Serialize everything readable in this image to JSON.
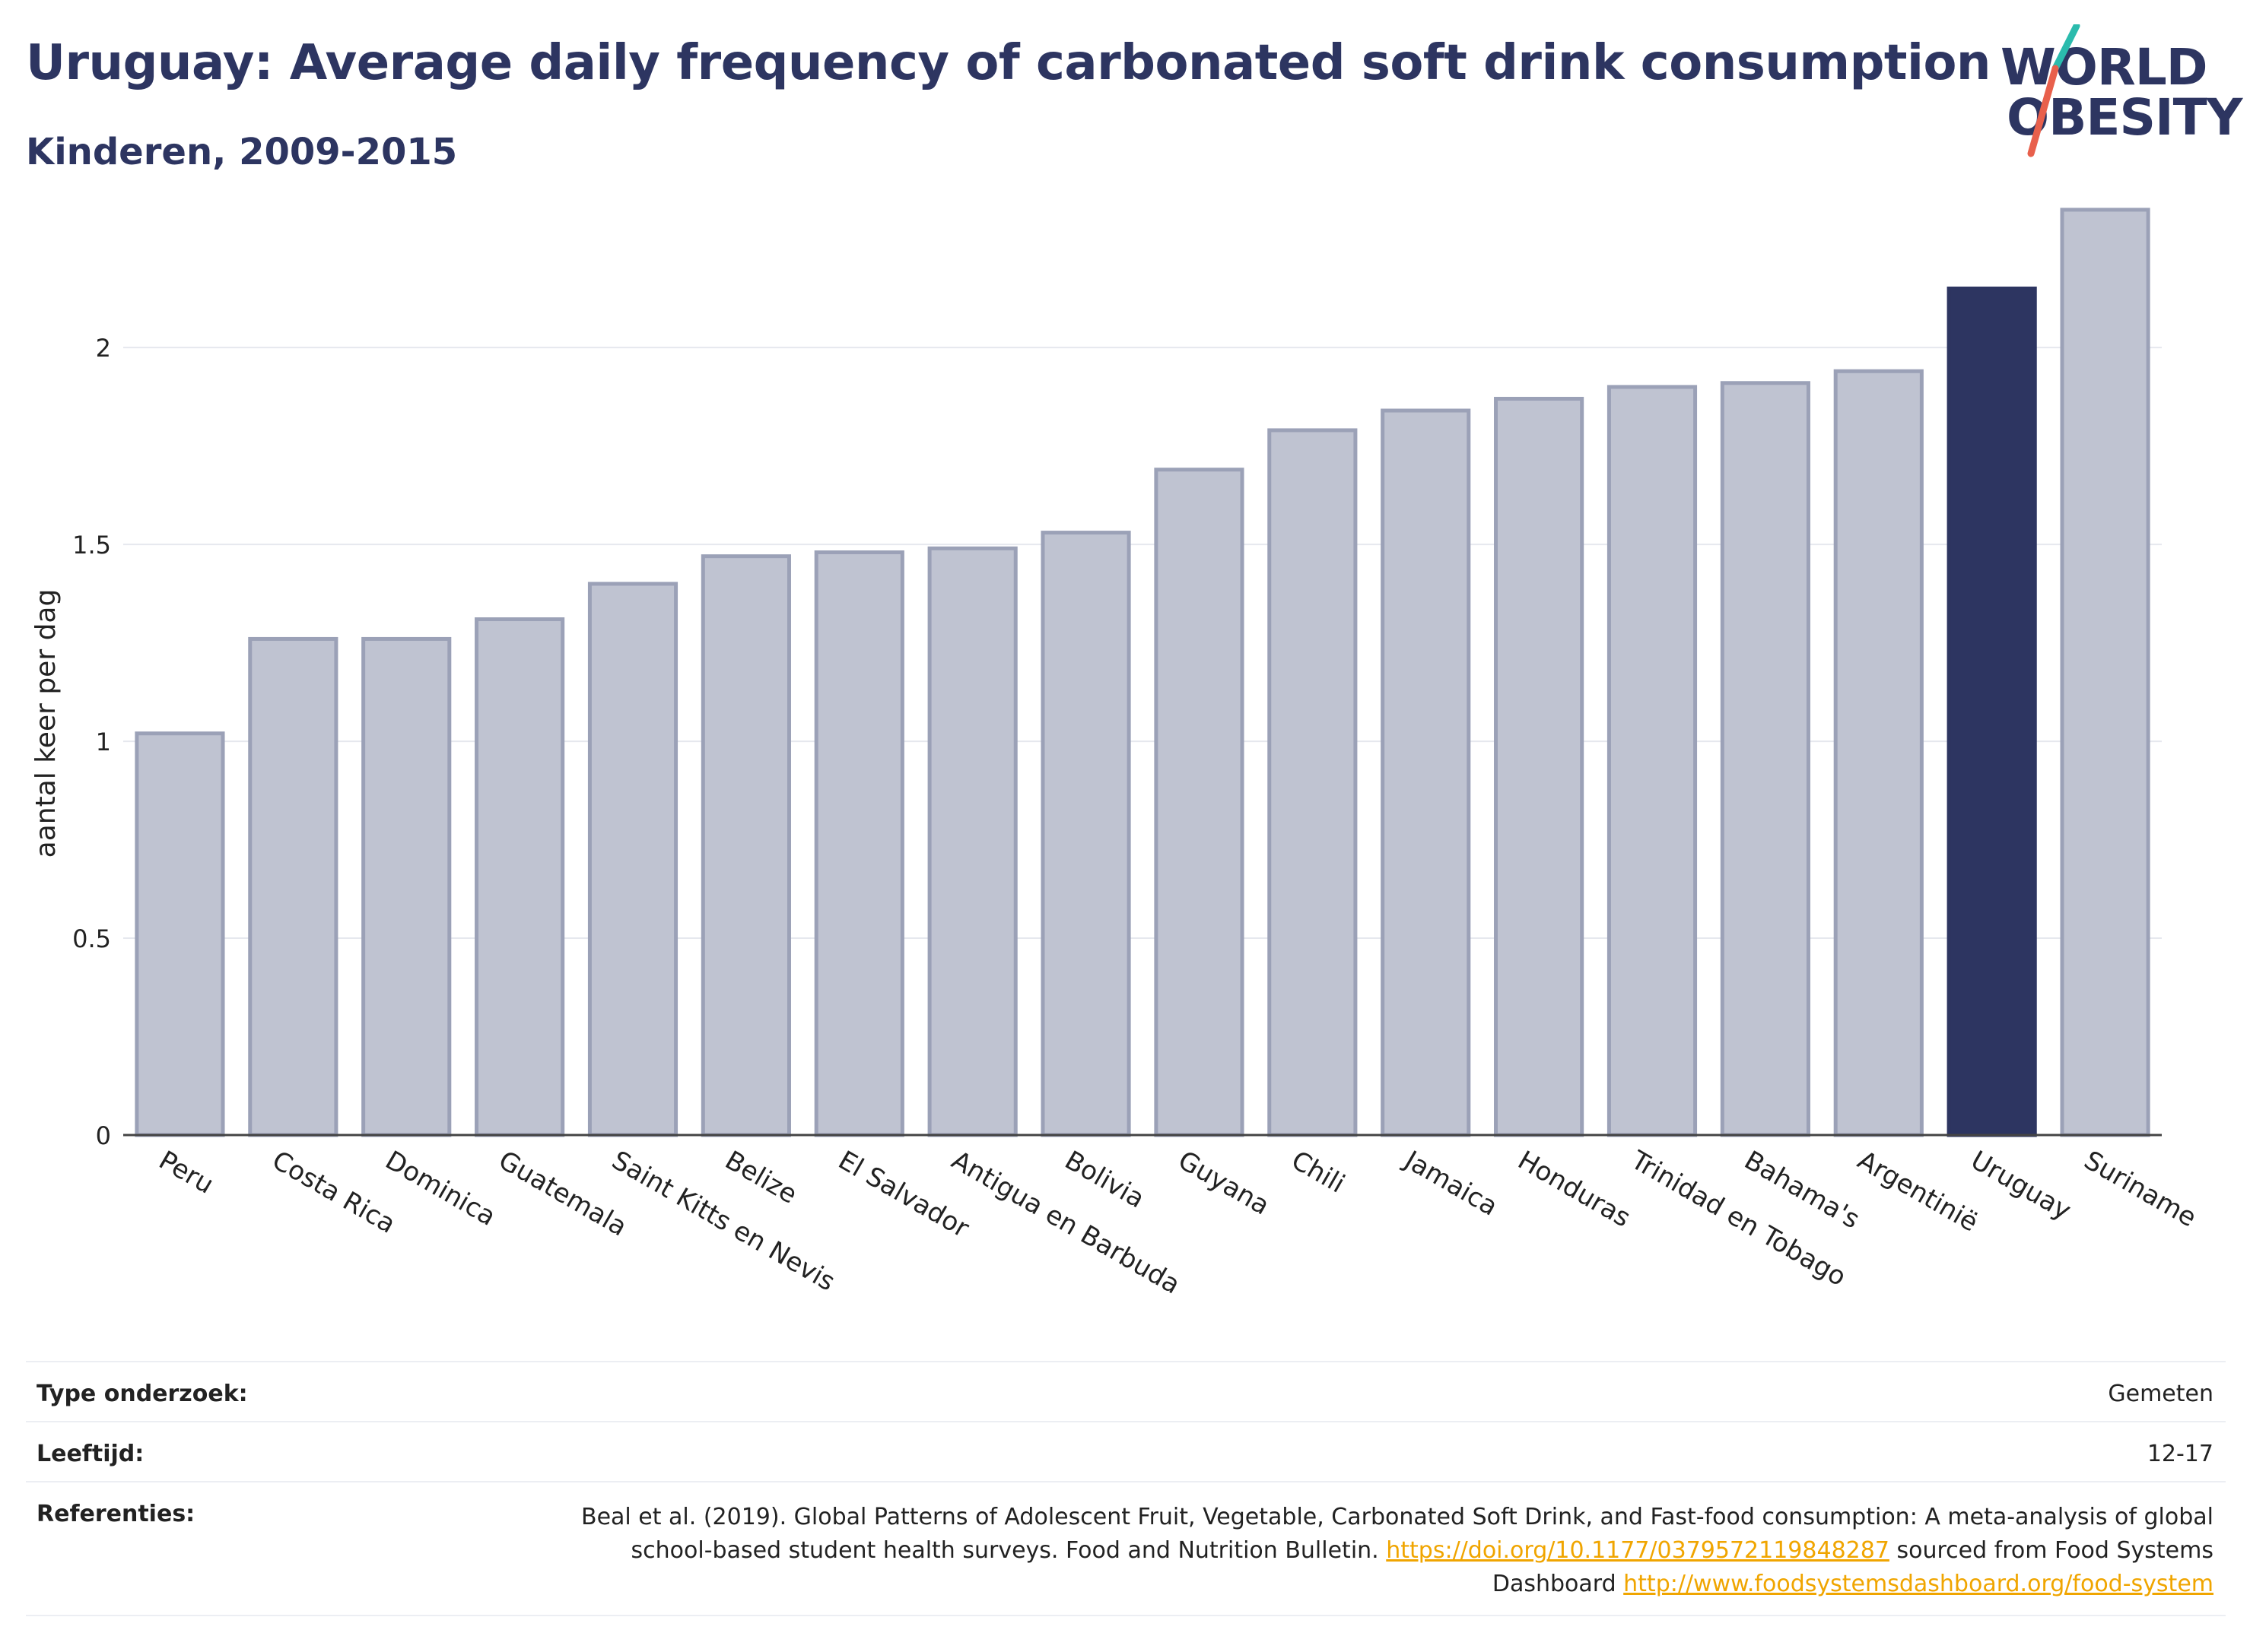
{
  "header": {
    "title": "Uruguay: Average daily frequency of carbonated soft drink consumption",
    "subtitle": "Kinderen, 2009-2015"
  },
  "logo": {
    "line1": "WORLD",
    "line2": "OBESITY",
    "colors": {
      "text": "#2d3561",
      "slash_top": "#2bbbad",
      "slash_bottom": "#e8604c"
    }
  },
  "chart_data": {
    "type": "bar",
    "ylabel": "aantal keer per dag",
    "ylim": [
      0,
      2.4
    ],
    "yticks": [
      0,
      0.5,
      1,
      1.5,
      2
    ],
    "ytick_labels": [
      "0",
      "0.5",
      "1",
      "1.5",
      "2"
    ],
    "grid": true,
    "highlight": "Uruguay",
    "colors": {
      "bar": "#bfc3d1",
      "bar_edge": "#9ba1b7",
      "highlight": "#2d3561"
    },
    "categories": [
      "Peru",
      "Costa Rica",
      "Dominica",
      "Guatemala",
      "Saint Kitts en Nevis",
      "Belize",
      "El Salvador",
      "Antigua en Barbuda",
      "Bolivia",
      "Guyana",
      "Chili",
      "Jamaica",
      "Honduras",
      "Trinidad en Tobago",
      "Bahama's",
      "Argentinië",
      "Uruguay",
      "Suriname"
    ],
    "values": [
      1.02,
      1.26,
      1.26,
      1.31,
      1.4,
      1.47,
      1.48,
      1.49,
      1.53,
      1.69,
      1.79,
      1.84,
      1.87,
      1.9,
      1.91,
      1.94,
      2.15,
      2.35
    ]
  },
  "info": {
    "survey_type_label": "Type onderzoek:",
    "survey_type_value": "Gemeten",
    "age_label": "Leeftijd:",
    "age_value": "12-17",
    "references_label": "Referenties:",
    "ref_text_1": "Beal et al. (2019). Global Patterns of Adolescent Fruit, Vegetable, Carbonated Soft Drink, and Fast-food consumption: A meta-analysis of global school-based student health surveys. Food and Nutrition Bulletin. ",
    "ref_link_1": "https://doi.org/10.1177/0379572119848287",
    "ref_text_2": " sourced from Food Systems Dashboard ",
    "ref_link_2": "http://www.foodsystemsdashboard.org/food-system"
  }
}
